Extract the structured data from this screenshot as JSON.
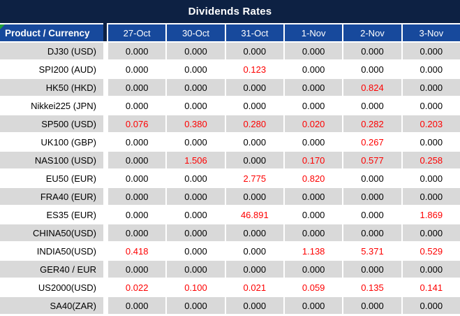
{
  "title": "Dividends Rates",
  "colors": {
    "title_bar_bg": "#0d2143",
    "header_bg": "#17499c",
    "row_alt_bg": "#d9d9d9",
    "row_bg": "#ffffff",
    "value_red": "#fe0000",
    "corner_green": "#21a038"
  },
  "table": {
    "product_header": "Product / Currency",
    "date_headers": [
      "27-Oct",
      "30-Oct",
      "31-Oct",
      "1-Nov",
      "2-Nov",
      "3-Nov"
    ],
    "zero_value": "0.000",
    "rows": [
      {
        "product": "DJ30 (USD)",
        "values": [
          "0.000",
          "0.000",
          "0.000",
          "0.000",
          "0.000",
          "0.000"
        ]
      },
      {
        "product": "SPI200 (AUD)",
        "values": [
          "0.000",
          "0.000",
          "0.123",
          "0.000",
          "0.000",
          "0.000"
        ]
      },
      {
        "product": "HK50 (HKD)",
        "values": [
          "0.000",
          "0.000",
          "0.000",
          "0.000",
          "0.824",
          "0.000"
        ]
      },
      {
        "product": "Nikkei225 (JPN)",
        "values": [
          "0.000",
          "0.000",
          "0.000",
          "0.000",
          "0.000",
          "0.000"
        ]
      },
      {
        "product": "SP500 (USD)",
        "values": [
          "0.076",
          "0.380",
          "0.280",
          "0.020",
          "0.282",
          "0.203"
        ]
      },
      {
        "product": "UK100 (GBP)",
        "values": [
          "0.000",
          "0.000",
          "0.000",
          "0.000",
          "0.267",
          "0.000"
        ]
      },
      {
        "product": "NAS100 (USD)",
        "values": [
          "0.000",
          "1.506",
          "0.000",
          "0.170",
          "0.577",
          "0.258"
        ]
      },
      {
        "product": "EU50 (EUR)",
        "values": [
          "0.000",
          "0.000",
          "2.775",
          "0.820",
          "0.000",
          "0.000"
        ]
      },
      {
        "product": "FRA40 (EUR)",
        "values": [
          "0.000",
          "0.000",
          "0.000",
          "0.000",
          "0.000",
          "0.000"
        ]
      },
      {
        "product": "ES35 (EUR)",
        "values": [
          "0.000",
          "0.000",
          "46.891",
          "0.000",
          "0.000",
          "1.869"
        ]
      },
      {
        "product": "CHINA50(USD)",
        "values": [
          "0.000",
          "0.000",
          "0.000",
          "0.000",
          "0.000",
          "0.000"
        ]
      },
      {
        "product": "INDIA50(USD)",
        "values": [
          "0.418",
          "0.000",
          "0.000",
          "1.138",
          "5.371",
          "0.529"
        ]
      },
      {
        "product": "GER40 / EUR",
        "values": [
          "0.000",
          "0.000",
          "0.000",
          "0.000",
          "0.000",
          "0.000"
        ]
      },
      {
        "product": "US2000(USD)",
        "values": [
          "0.022",
          "0.100",
          "0.021",
          "0.059",
          "0.135",
          "0.141"
        ]
      },
      {
        "product": "SA40(ZAR)",
        "values": [
          "0.000",
          "0.000",
          "0.000",
          "0.000",
          "0.000",
          "0.000"
        ]
      }
    ]
  }
}
